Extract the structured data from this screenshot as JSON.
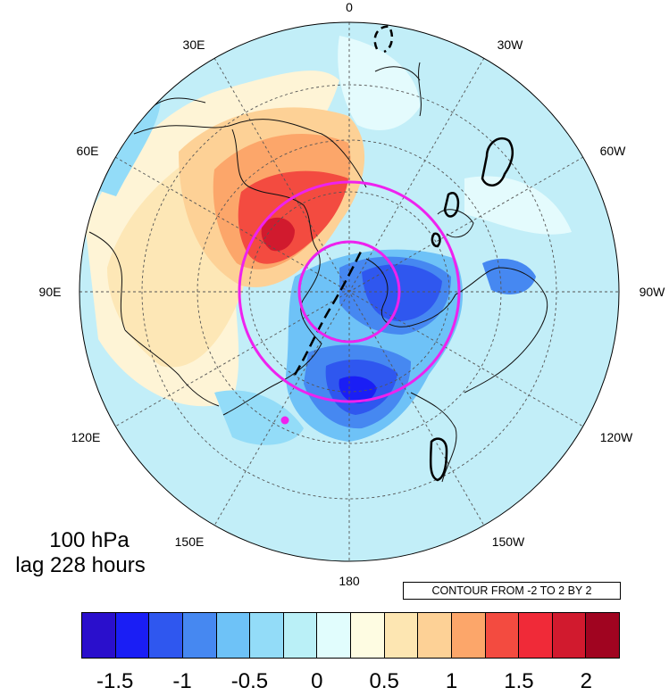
{
  "map": {
    "projection": "north-polar-stereographic",
    "field": "anomaly",
    "longitude_labels": [
      "0",
      "30W",
      "60W",
      "90W",
      "120W",
      "150W",
      "180",
      "150E",
      "120E",
      "90E",
      "60E",
      "30E"
    ],
    "level_label": "100 hPa",
    "lag_label": "lag 228 hours",
    "contour_info": "CONTOUR FROM -2 TO 2 BY 2",
    "highlight_color": "#ee22ee",
    "marker_color": "#ee22ee",
    "features": [
      {
        "name": "warm anomaly",
        "sign": "positive",
        "location": "northern Siberia / Kara Sea",
        "peak": 2
      },
      {
        "name": "cold anomaly",
        "sign": "negative",
        "location": "Arctic Ocean / Beaufort",
        "peak": -1.75
      },
      {
        "name": "cold anomaly",
        "sign": "negative",
        "location": "Bering / Alaska",
        "peak": -1.75
      },
      {
        "name": "cold anomaly",
        "sign": "negative",
        "location": "Hudson Bay",
        "peak": -1.25
      }
    ]
  },
  "colorbar": {
    "colors": [
      "#2a0fcc",
      "#1a1ef5",
      "#2f57ef",
      "#4688f1",
      "#6ec2f7",
      "#93dcf8",
      "#baf0f7",
      "#e1fdfd",
      "#fefce2",
      "#fde6b2",
      "#fdd196",
      "#fca66a",
      "#f34b40",
      "#f02a38",
      "#d11a2e",
      "#a00420"
    ],
    "tick_labels": [
      "-1.5",
      "-1",
      "-0.5",
      "0",
      "0.5",
      "1",
      "1.5",
      "2"
    ]
  }
}
